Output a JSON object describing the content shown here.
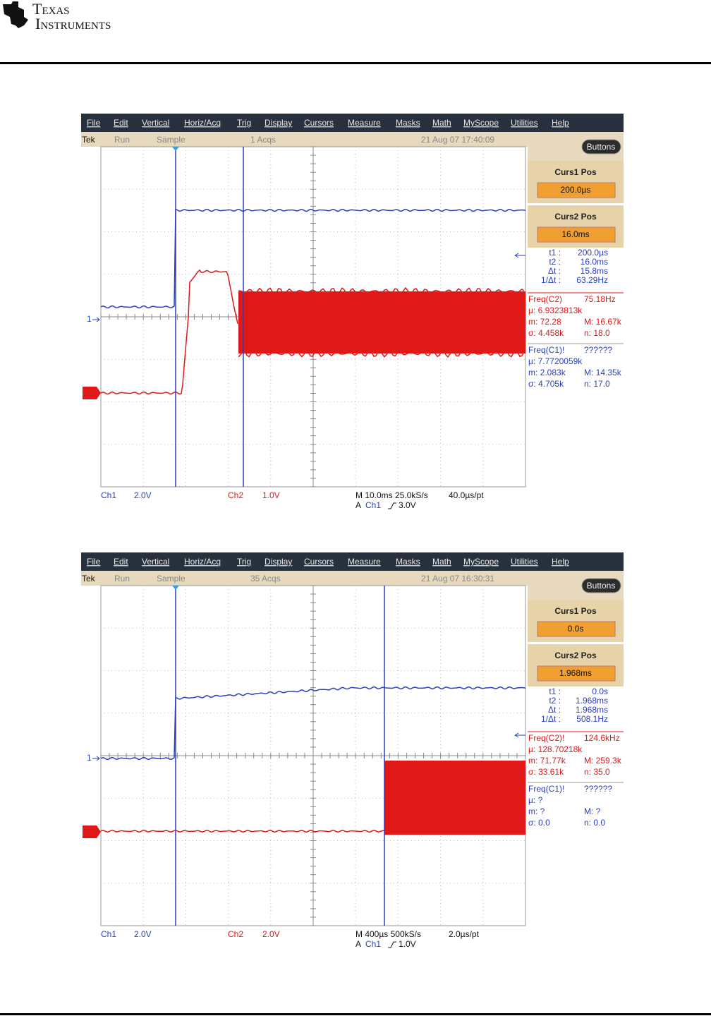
{
  "header": {
    "logo_line1": "Texas",
    "logo_line2": "Instruments"
  },
  "scopes": [
    {
      "menu": [
        "File",
        "Edit",
        "Vertical",
        "Horiz/Acq",
        "Trig",
        "Display",
        "Cursors",
        "Measure",
        "Masks",
        "Math",
        "MyScope",
        "Utilities",
        "Help"
      ],
      "status": {
        "brand": "Tek",
        "state": "Run",
        "mode": "Sample",
        "acqs": "1 Acqs",
        "datetime": "21 Aug 07 17:40:09"
      },
      "buttons": "Buttons",
      "curs1": {
        "label": "Curs1 Pos",
        "value": "200.0µs"
      },
      "curs2": {
        "label": "Curs2 Pos",
        "value": "16.0ms"
      },
      "readout": [
        [
          "t1 :",
          "200.0µs"
        ],
        [
          "t2 :",
          "16.0ms"
        ],
        [
          "Δt :",
          "15.8ms"
        ],
        [
          "1/Δt :",
          "63.29Hz"
        ]
      ],
      "meas1": [
        [
          "Freq(C2)",
          "75.18Hz"
        ],
        [
          "µ: 6.9323813k"
        ],
        [
          "m: 72.28",
          "M: 16.67k"
        ],
        [
          "σ: 4.458k",
          "n: 18.0"
        ]
      ],
      "meas2": [
        [
          "Freq(C1)!",
          "??????"
        ],
        [
          "µ: 7.7720059k"
        ],
        [
          "m: 2.083k",
          "M: 14.35k"
        ],
        [
          "σ: 4.705k",
          "n: 17.0"
        ]
      ],
      "marker": "1",
      "bottom": {
        "ch1": "Ch1",
        "ch1_scale": "2.0V",
        "ch2": "Ch2",
        "ch2_scale": "1.0V",
        "timebase": "M 10.0ms 25.0kS/s",
        "rate": "40.0µs/pt",
        "trig_a": "A",
        "trig_ch": "Ch1",
        "trig_level": "3.0V"
      }
    },
    {
      "menu": [
        "File",
        "Edit",
        "Vertical",
        "Horiz/Acq",
        "Trig",
        "Display",
        "Cursors",
        "Measure",
        "Masks",
        "Math",
        "MyScope",
        "Utilities",
        "Help"
      ],
      "status": {
        "brand": "Tek",
        "state": "Run",
        "mode": "Sample",
        "acqs": "35 Acqs",
        "datetime": "21 Aug 07 16:30:31"
      },
      "buttons": "Buttons",
      "curs1": {
        "label": "Curs1 Pos",
        "value": "0.0s"
      },
      "curs2": {
        "label": "Curs2 Pos",
        "value": "1.968ms"
      },
      "readout": [
        [
          "t1 :",
          "0.0s"
        ],
        [
          "t2 :",
          "1.968ms"
        ],
        [
          "Δt :",
          "1.968ms"
        ],
        [
          "1/Δt :",
          "508.1Hz"
        ]
      ],
      "meas1": [
        [
          "Freq(C2)!",
          "124.6kHz"
        ],
        [
          "µ: 128.70218k"
        ],
        [
          "m: 71.77k",
          "M: 259.3k"
        ],
        [
          "σ: 33.61k",
          "n: 35.0"
        ]
      ],
      "meas2": [
        [
          "Freq(C1)!",
          "??????"
        ],
        [
          "µ: ?"
        ],
        [
          "m: ?",
          "M: ?"
        ],
        [
          "σ: 0.0",
          "n: 0.0"
        ]
      ],
      "marker": "1",
      "bottom": {
        "ch1": "Ch1",
        "ch1_scale": "2.0V",
        "ch2": "Ch2",
        "ch2_scale": "2.0V",
        "timebase": "M 400µs 500kS/s",
        "rate": "2.0µs/pt",
        "trig_a": "A",
        "trig_ch": "Ch1",
        "trig_level": "1.0V"
      }
    }
  ]
}
